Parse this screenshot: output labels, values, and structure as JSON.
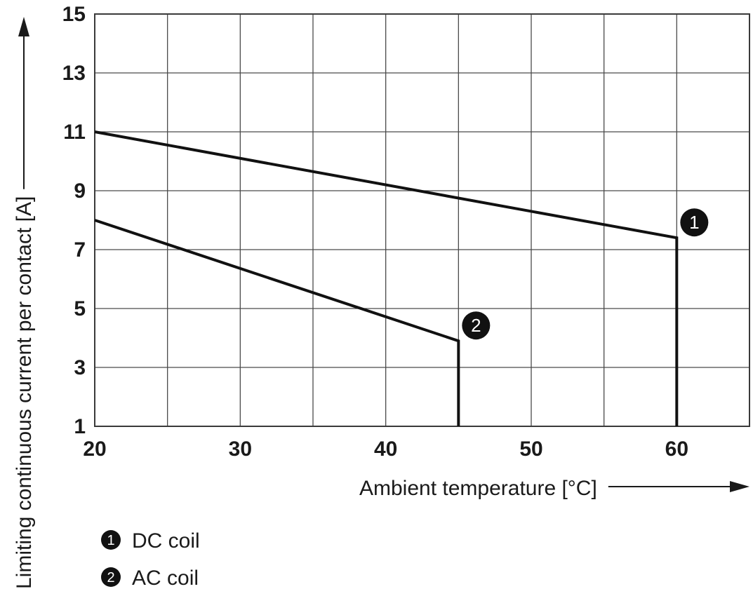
{
  "chart_data": {
    "type": "line",
    "xlabel": "Ambient temperature [°C]",
    "ylabel": "Limiting continuous current per contact [A]",
    "xlim": [
      20,
      65
    ],
    "ylim": [
      1,
      15
    ],
    "x_ticks": [
      20,
      30,
      40,
      50,
      60
    ],
    "y_ticks": [
      1,
      3,
      5,
      7,
      9,
      11,
      13,
      15
    ],
    "grid": true,
    "series": [
      {
        "name": "DC coil",
        "marker": "1",
        "points": [
          [
            20,
            11.0
          ],
          [
            60,
            7.4
          ],
          [
            60,
            1.0
          ]
        ]
      },
      {
        "name": "AC coil",
        "marker": "2",
        "points": [
          [
            20,
            8.0
          ],
          [
            45,
            3.9
          ],
          [
            45,
            1.0
          ]
        ]
      }
    ],
    "legend": [
      {
        "num": "1",
        "text": "DC coil"
      },
      {
        "num": "2",
        "text": "AC coil"
      }
    ],
    "legend_position": "bottom-left"
  }
}
